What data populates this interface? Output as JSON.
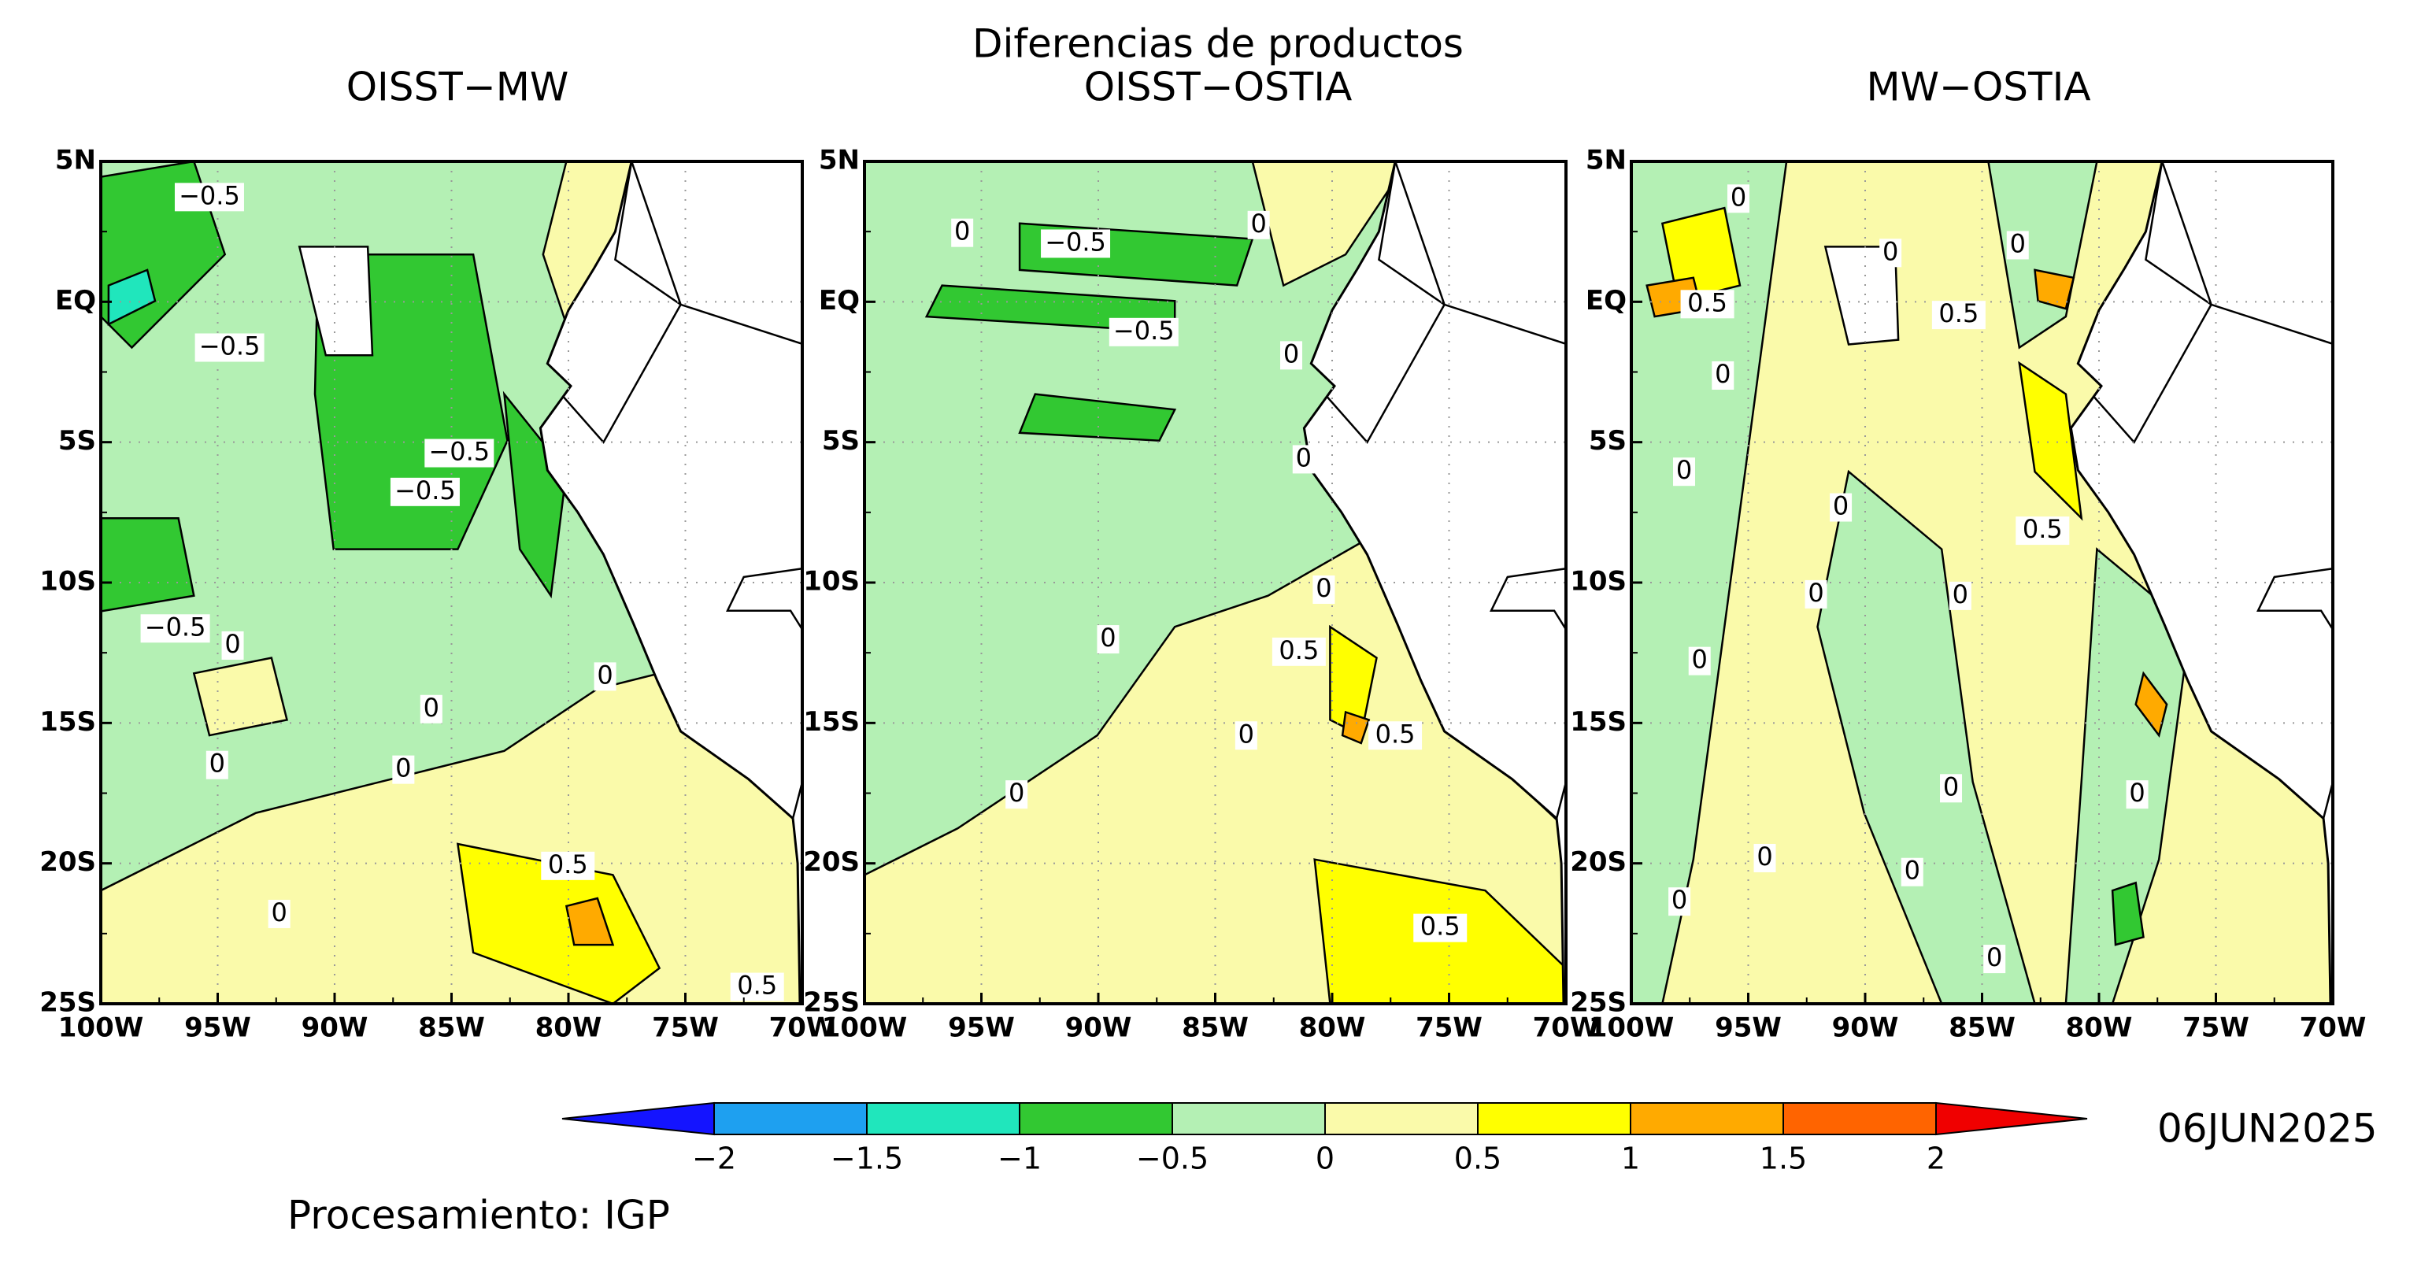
{
  "title": "Diferencias de productos",
  "panels": [
    {
      "title": "OISST−MW",
      "contour_labels": [
        "−0.5",
        "−0.5",
        "−0.5",
        "−0.5",
        "−0.5",
        "0",
        "0",
        "0",
        "0",
        "0",
        "0.5",
        "0",
        "0.5"
      ]
    },
    {
      "title": "OISST−OSTIA",
      "contour_labels": [
        "0",
        "−0.5",
        "0",
        "−0.5",
        "0",
        "0",
        "0",
        "0",
        "0.5",
        "0",
        "0.5",
        "0",
        "0.5"
      ]
    },
    {
      "title": "MW−OSTIA",
      "contour_labels": [
        "0",
        "0",
        "0",
        "0.5",
        "0.5",
        "0",
        "0",
        "0",
        "0.5",
        "0",
        "0",
        "0",
        "0",
        "0",
        "0",
        "0",
        "0",
        "0"
      ]
    }
  ],
  "lat_labels": [
    "5N",
    "EQ",
    "5S",
    "10S",
    "15S",
    "20S",
    "25S"
  ],
  "lon_labels": [
    "100W",
    "95W",
    "90W",
    "85W",
    "80W",
    "75W",
    "70W"
  ],
  "colorbar": {
    "colors": [
      "#1414ff",
      "#1ea0f0",
      "#20e6bc",
      "#32c832",
      "#b4f0b4",
      "#fafaaa",
      "#ffff00",
      "#ffaa00",
      "#ff6400",
      "#f00000"
    ],
    "labels": [
      "−2",
      "−1.5",
      "−1",
      "−0.5",
      "0",
      "0.5",
      "1",
      "1.5",
      "2"
    ]
  },
  "date": "06JUN2025",
  "credit": "Procesamiento: IGP"
}
